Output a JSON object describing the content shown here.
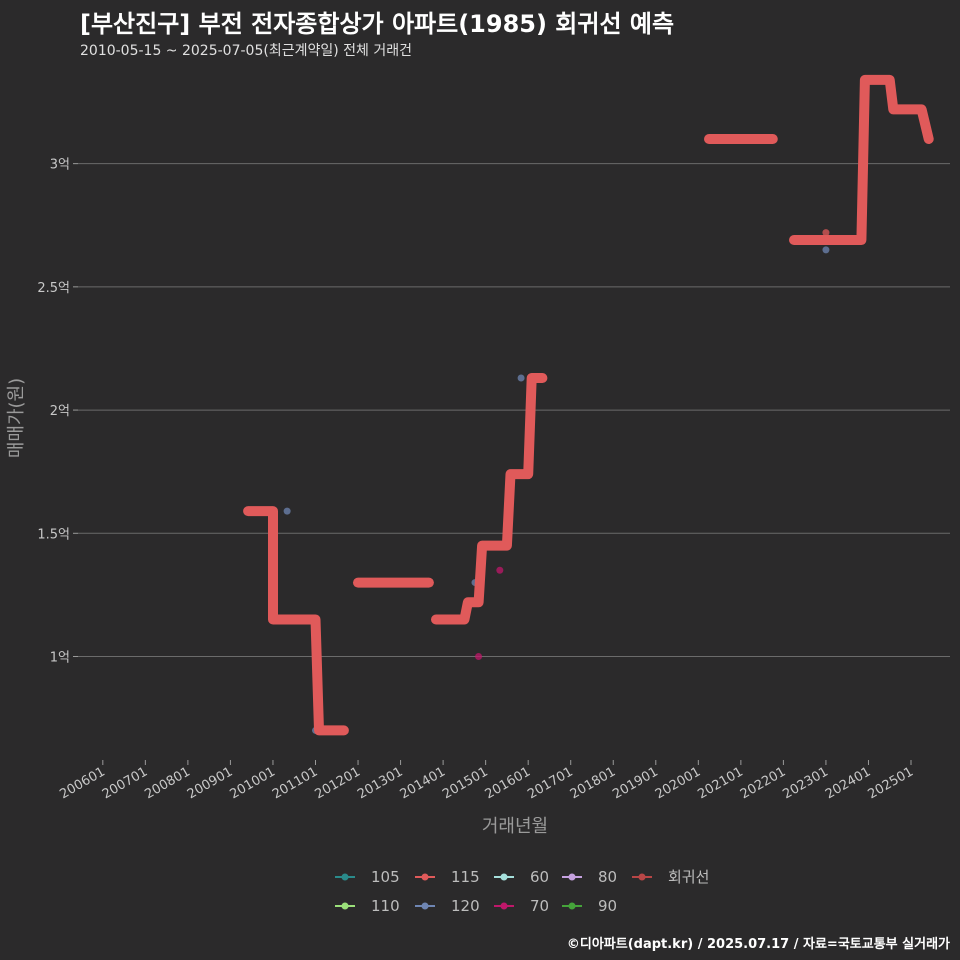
{
  "title": "[부산진구] 부전 전자종합상가 아파트(1985) 회귀선 예측",
  "subtitle": "2010-05-15 ~ 2025-07-05(최근계약일) 전체 거래건",
  "credit": "©디아파트(dapt.kr) / 2025.07.17 / 자료=국토교통부 실거래가",
  "chart_data": {
    "type": "line",
    "xlabel": "거래년월",
    "ylabel": "매매가(원)",
    "x_range": [
      "2005-06",
      "2025-12"
    ],
    "ylim": [
      0.58,
      3.38
    ],
    "y_unit": "억",
    "y_ticks": [
      {
        "value": 1,
        "label": "1억"
      },
      {
        "value": 1.5,
        "label": "1.5억"
      },
      {
        "value": 2,
        "label": "2억"
      },
      {
        "value": 2.5,
        "label": "2.5억"
      },
      {
        "value": 3,
        "label": "3억"
      }
    ],
    "x_ticks": [
      "200601",
      "200701",
      "200801",
      "200901",
      "201001",
      "201101",
      "201201",
      "201301",
      "201401",
      "201501",
      "201601",
      "201701",
      "201801",
      "201901",
      "202001",
      "202101",
      "202201",
      "202301",
      "202401",
      "202501"
    ],
    "grid": true,
    "legend_position": "bottom",
    "regression_color": "#e05a5a",
    "regression_segments": [
      [
        [
          "2009-06",
          1.59
        ],
        [
          "2010-01",
          1.59
        ],
        [
          "2010-01",
          1.15
        ],
        [
          "2011-01",
          1.15
        ],
        [
          "2011-02",
          0.7
        ],
        [
          "2011-09",
          0.7
        ]
      ],
      [
        [
          "2012-01",
          1.3
        ],
        [
          "2013-09",
          1.3
        ]
      ],
      [
        [
          "2013-11",
          1.15
        ],
        [
          "2014-07",
          1.15
        ],
        [
          "2014-08",
          1.22
        ],
        [
          "2014-11",
          1.22
        ],
        [
          "2014-12",
          1.45
        ],
        [
          "2015-07",
          1.45
        ],
        [
          "2015-08",
          1.74
        ],
        [
          "2016-01",
          1.74
        ],
        [
          "2016-02",
          2.13
        ],
        [
          "2016-05",
          2.13
        ]
      ],
      [
        [
          "2020-04",
          3.1
        ],
        [
          "2021-10",
          3.1
        ]
      ],
      [
        [
          "2022-04",
          2.69
        ],
        [
          "2023-11",
          2.69
        ],
        [
          "2023-12",
          3.34
        ],
        [
          "2024-07",
          3.34
        ],
        [
          "2024-08",
          3.22
        ],
        [
          "2025-04",
          3.22
        ],
        [
          "2025-06",
          3.1
        ]
      ]
    ],
    "points": [
      {
        "date": "2010-05",
        "value": 1.59,
        "series": "120"
      },
      {
        "date": "2011-01",
        "value": 0.7,
        "series": "120"
      },
      {
        "date": "2014-10",
        "value": 1.3,
        "series": "120"
      },
      {
        "date": "2014-11",
        "value": 1.0,
        "series": "70"
      },
      {
        "date": "2015-05",
        "value": 1.35,
        "series": "70"
      },
      {
        "date": "2015-11",
        "value": 2.13,
        "series": "120"
      },
      {
        "date": "2023-01",
        "value": 2.65,
        "series": "120"
      },
      {
        "date": "2023-01",
        "value": 2.72,
        "series": "115"
      }
    ],
    "legend": [
      {
        "name": "105",
        "color": "#2a8b8b"
      },
      {
        "name": "115",
        "color": "#e05a5a"
      },
      {
        "name": "60",
        "color": "#a6e0dc"
      },
      {
        "name": "80",
        "color": "#c6a2e0"
      },
      {
        "name": "회귀선",
        "color": "#b84646"
      },
      {
        "name": "110",
        "color": "#9be07a"
      },
      {
        "name": "120",
        "color": "#6f86b3"
      },
      {
        "name": "70",
        "color": "#c0176a"
      },
      {
        "name": "90",
        "color": "#45a33a"
      }
    ]
  }
}
